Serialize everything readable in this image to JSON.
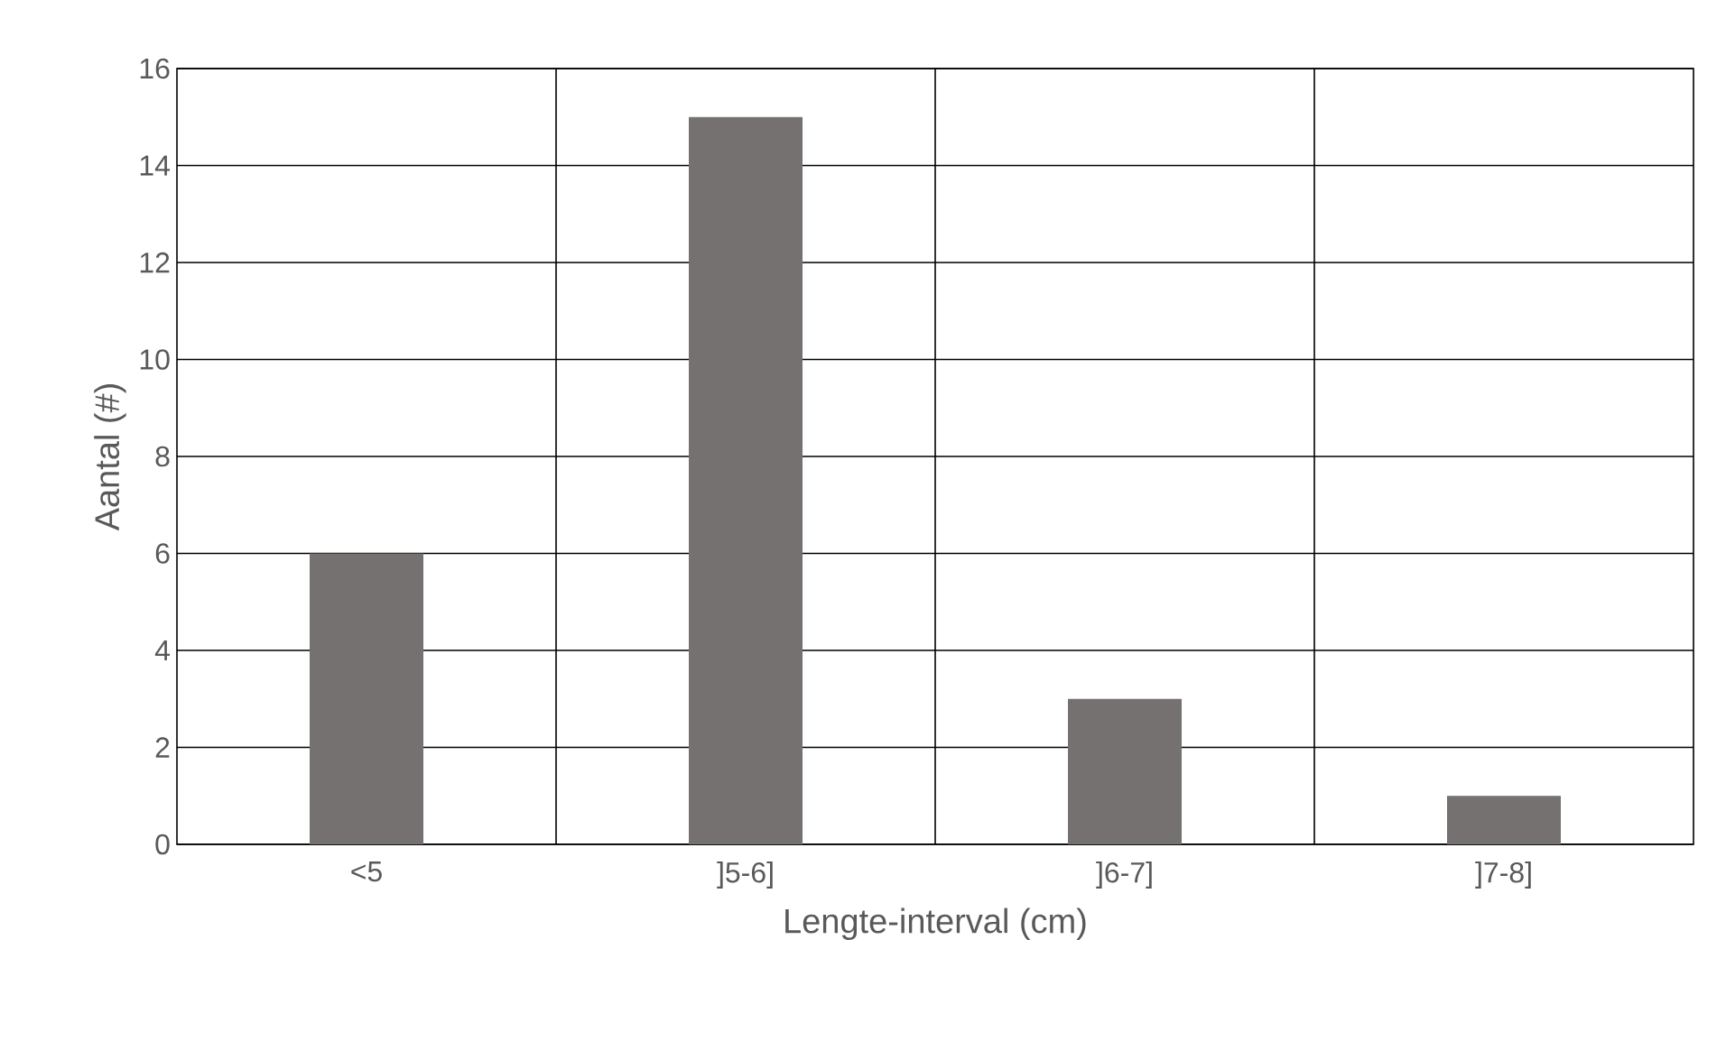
{
  "chart_data": {
    "type": "bar",
    "xlabel": "Lengte-interval (cm)",
    "ylabel": "Aantal (#)",
    "categories": [
      "<5",
      "]5-6]",
      "]6-7]",
      "]7-8]"
    ],
    "values": [
      6,
      15,
      3,
      1
    ],
    "color": "#767171",
    "ylim": [
      0,
      16
    ],
    "yticks": [
      0,
      2,
      4,
      6,
      8,
      10,
      12,
      14,
      16
    ],
    "grid": true
  }
}
